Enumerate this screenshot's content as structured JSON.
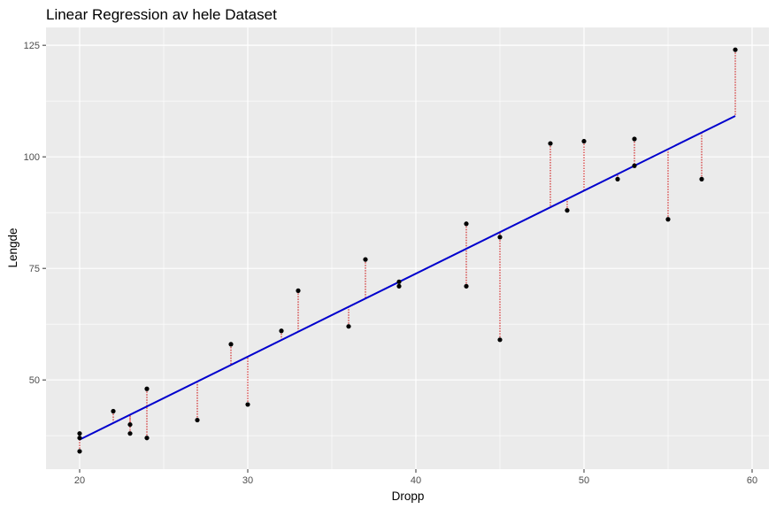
{
  "chart_data": {
    "type": "scatter",
    "title": "Linear Regression av hele Dataset",
    "xlabel": "Dropp",
    "ylabel": "Lengde",
    "x_ticks": [
      "20",
      "30",
      "40",
      "50",
      "60"
    ],
    "y_ticks": [
      "50",
      "75",
      "100",
      "125"
    ],
    "xlim": [
      18,
      61
    ],
    "ylim": [
      30,
      129
    ],
    "grid": true,
    "legend": "none",
    "points": [
      {
        "x": 20,
        "y": 38
      },
      {
        "x": 20,
        "y": 37
      },
      {
        "x": 20,
        "y": 34
      },
      {
        "x": 22,
        "y": 43
      },
      {
        "x": 23,
        "y": 40
      },
      {
        "x": 23,
        "y": 38
      },
      {
        "x": 24,
        "y": 48
      },
      {
        "x": 24,
        "y": 37
      },
      {
        "x": 27,
        "y": 41
      },
      {
        "x": 29,
        "y": 58
      },
      {
        "x": 30,
        "y": 44.5
      },
      {
        "x": 32,
        "y": 61
      },
      {
        "x": 33,
        "y": 70
      },
      {
        "x": 36,
        "y": 62
      },
      {
        "x": 37,
        "y": 77
      },
      {
        "x": 39,
        "y": 72
      },
      {
        "x": 39,
        "y": 71
      },
      {
        "x": 43,
        "y": 85
      },
      {
        "x": 43,
        "y": 71
      },
      {
        "x": 45,
        "y": 82
      },
      {
        "x": 45,
        "y": 59
      },
      {
        "x": 48,
        "y": 103
      },
      {
        "x": 49,
        "y": 88
      },
      {
        "x": 50,
        "y": 103.5
      },
      {
        "x": 52,
        "y": 95
      },
      {
        "x": 53,
        "y": 104
      },
      {
        "x": 53,
        "y": 98
      },
      {
        "x": 55,
        "y": 86
      },
      {
        "x": 57,
        "y": 95
      },
      {
        "x": 59,
        "y": 124
      }
    ],
    "regression": {
      "intercept": -0.58,
      "slope": 1.86,
      "x_range": [
        20,
        59
      ]
    },
    "colors": {
      "panel_background": "#ebebeb",
      "grid": "#ffffff",
      "points": "#000000",
      "regression_line": "#0000cd",
      "residuals": "#cc0000"
    }
  }
}
